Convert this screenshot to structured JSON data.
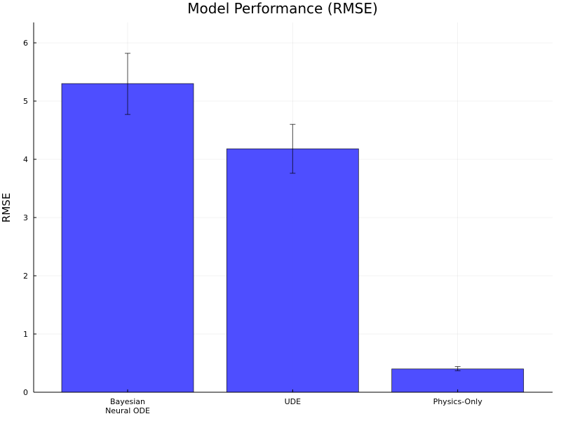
{
  "chart_data": {
    "type": "bar",
    "title": "Model Performance (RMSE)",
    "xlabel": "",
    "ylabel": "RMSE",
    "categories": [
      [
        "Bayesian",
        "Neural ODE"
      ],
      [
        "UDE"
      ],
      [
        "Physics-Only"
      ]
    ],
    "values": [
      5.3,
      4.18,
      0.4
    ],
    "error_low": [
      4.77,
      3.76,
      0.37
    ],
    "error_high": [
      5.82,
      4.6,
      0.44
    ],
    "ylim": [
      0,
      6.35
    ],
    "yticks": [
      0,
      1,
      2,
      3,
      4,
      5,
      6
    ],
    "grid": true,
    "legend": "none",
    "bar_color": "#4444ff",
    "bar_opacity": 0.95
  }
}
